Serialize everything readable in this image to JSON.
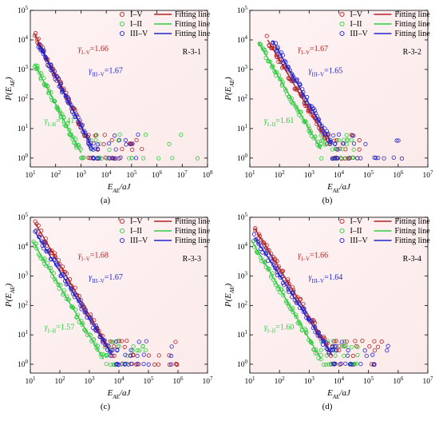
{
  "series_colors": {
    "I–V": "#b22222",
    "I–II": "#2ecc40",
    "III–V": "#2222cc"
  },
  "panel_bg": "#fbeaea",
  "chart_data": [
    {
      "type": "scatter",
      "label": "(a)",
      "specimen": "R-3-1",
      "xlabel": "E_AE/aJ",
      "ylabel": "P(E_AE)",
      "xscale": "log",
      "yscale": "log",
      "xlim": [
        10,
        100000000
      ],
      "ylim": [
        0.5,
        100000
      ],
      "x_ticks": [
        "10^1",
        "10^2",
        "10^3",
        "10^4",
        "10^5",
        "10^6",
        "10^7",
        "10^8"
      ],
      "y_ticks": [
        "10^0",
        "10^1",
        "10^2",
        "10^3",
        "10^4",
        "10^5"
      ],
      "legend": [
        "I–V",
        "I–II",
        "III–V",
        "Fitting line",
        "Fitting line",
        "Fitting line"
      ],
      "annotations": [
        {
          "series": "I–V",
          "text": "γI–V=1.66"
        },
        {
          "series": "III–V",
          "text": "γIII–V=1.67"
        },
        {
          "series": "I–II",
          "text": "γI–II=1.41"
        }
      ],
      "series": [
        {
          "name": "I–V",
          "exponent": 1.66,
          "fit": [
            [
              15,
              15000
            ],
            [
              2000,
              4
            ]
          ],
          "x_max": 300000
        },
        {
          "name": "I–II",
          "exponent": 1.41,
          "fit": [
            [
              15,
              1500
            ],
            [
              1000,
              1.5
            ]
          ],
          "x_max": 100000000
        },
        {
          "name": "III–V",
          "exponent": 1.67,
          "fit": [
            [
              20,
              8000
            ],
            [
              3000,
              2
            ]
          ],
          "x_max": 300000
        }
      ]
    },
    {
      "type": "scatter",
      "label": "(b)",
      "specimen": "R-3-2",
      "xlabel": "E_AE/aJ",
      "ylabel": "P(E_AE)",
      "xscale": "log",
      "yscale": "log",
      "xlim": [
        10,
        10000000
      ],
      "ylim": [
        0.5,
        100000
      ],
      "x_ticks": [
        "10^1",
        "10^2",
        "10^3",
        "10^4",
        "10^5",
        "10^6",
        "10^7"
      ],
      "y_ticks": [
        "10^0",
        "10^1",
        "10^2",
        "10^3",
        "10^4",
        "10^5"
      ],
      "legend": [
        "I–V",
        "I–II",
        "III–V",
        "Fitting line",
        "Fitting line",
        "Fitting line"
      ],
      "annotations": [
        {
          "series": "I–V",
          "text": "γI–V=1.67"
        },
        {
          "series": "III–V",
          "text": "γIII–V=1.65"
        },
        {
          "series": "I–II",
          "text": "γI–II=1.61"
        }
      ],
      "series": [
        {
          "name": "I–V",
          "exponent": 1.67,
          "fit": [
            [
              40,
              10000
            ],
            [
              4000,
              4
            ]
          ],
          "x_max": 100000
        },
        {
          "name": "I–II",
          "exponent": 1.61,
          "fit": [
            [
              20,
              8000
            ],
            [
              2500,
              2
            ]
          ],
          "x_max": 50000
        },
        {
          "name": "III–V",
          "exponent": 1.65,
          "fit": [
            [
              60,
              9000
            ],
            [
              6000,
              3
            ]
          ],
          "x_max": 2000000
        }
      ]
    },
    {
      "type": "scatter",
      "label": "(c)",
      "specimen": "R-3-3",
      "xlabel": "E_AE/aJ",
      "ylabel": "P(E_AE)",
      "xscale": "log",
      "yscale": "log",
      "xlim": [
        10,
        10000000
      ],
      "ylim": [
        0.5,
        100000
      ],
      "x_ticks": [
        "10^1",
        "10^2",
        "10^3",
        "10^4",
        "10^5",
        "10^6",
        "10^7"
      ],
      "y_ticks": [
        "10^0",
        "10^1",
        "10^2",
        "10^3",
        "10^4",
        "10^5"
      ],
      "legend": [
        "I–V",
        "I–II",
        "III–V",
        "Fitting line",
        "Fitting line",
        "Fitting line"
      ],
      "annotations": [
        {
          "series": "I–V",
          "text": "γI–V=1.68"
        },
        {
          "series": "III–V",
          "text": "γIII–V=1.67"
        },
        {
          "series": "I–II",
          "text": "γI–II=1.57"
        }
      ],
      "series": [
        {
          "name": "I–V",
          "exponent": 1.68,
          "fit": [
            [
              15,
              60000
            ],
            [
              5000,
              3
            ]
          ],
          "x_max": 1000000
        },
        {
          "name": "I–II",
          "exponent": 1.57,
          "fit": [
            [
              12,
              15000
            ],
            [
              3000,
              1.5
            ]
          ],
          "x_max": 100000
        },
        {
          "name": "III–V",
          "exponent": 1.67,
          "fit": [
            [
              15,
              30000
            ],
            [
              6000,
              2
            ]
          ],
          "x_max": 1500000
        }
      ]
    },
    {
      "type": "scatter",
      "label": "(d)",
      "specimen": "R-3-4",
      "xlabel": "E_AE/aJ",
      "ylabel": "P(E_AE)",
      "xscale": "log",
      "yscale": "log",
      "xlim": [
        10,
        10000000
      ],
      "ylim": [
        0.5,
        100000
      ],
      "x_ticks": [
        "10^1",
        "10^2",
        "10^3",
        "10^4",
        "10^5",
        "10^6",
        "10^7"
      ],
      "y_ticks": [
        "10^0",
        "10^1",
        "10^2",
        "10^3",
        "10^4",
        "10^5"
      ],
      "legend": [
        "I–V",
        "I–II",
        "III–V",
        "Fitting line",
        "Fitting line",
        "Fitting line"
      ],
      "annotations": [
        {
          "series": "I–V",
          "text": "γI–V=1.66"
        },
        {
          "series": "III–V",
          "text": "γIII–V=1.64"
        },
        {
          "series": "I–II",
          "text": "γI–II=1.60"
        }
      ],
      "series": [
        {
          "name": "I–V",
          "exponent": 1.66,
          "fit": [
            [
              15,
              40000
            ],
            [
              5000,
              3
            ]
          ],
          "x_max": 500000
        },
        {
          "name": "I–II",
          "exponent": 1.6,
          "fit": [
            [
              12,
              15000
            ],
            [
              2500,
              1.5
            ]
          ],
          "x_max": 50000
        },
        {
          "name": "III–V",
          "exponent": 1.64,
          "fit": [
            [
              15,
              20000
            ],
            [
              6000,
              2
            ]
          ],
          "x_max": 500000
        }
      ]
    }
  ]
}
